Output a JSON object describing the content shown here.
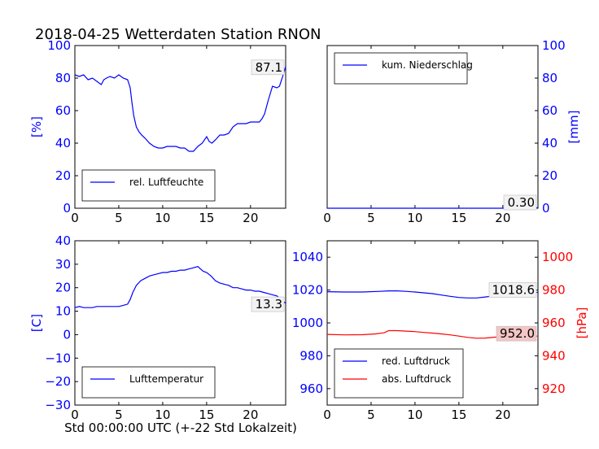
{
  "title": "2018-04-25 Wetterdaten Station RNON",
  "xlabel": "Std 00:00:00 UTC (+-22 Std Lokalzeit)",
  "colors": {
    "blue": "#0000ff",
    "red": "#ff0000",
    "annotation_bg_red": "#f4c6c6",
    "annotation_bg": "#f2f2f2"
  },
  "chart_data": [
    {
      "type": "line",
      "panel": "top-left",
      "ylabel": "[%]",
      "ylabel_side": "left",
      "xlim": [
        0,
        24
      ],
      "ylim": [
        0,
        100
      ],
      "xticks": [
        "0",
        "5",
        "10",
        "15",
        "20"
      ],
      "yticks": [
        "0",
        "20",
        "40",
        "60",
        "80",
        "100"
      ],
      "ytick_color": "blue",
      "legend_position": "lower-left",
      "annotation": "87.1",
      "series": [
        {
          "name": "rel. Luftfeuchte",
          "color": "blue",
          "x": [
            0,
            0.5,
            1,
            1.5,
            2,
            2.5,
            3,
            3.3,
            3.6,
            4,
            4.5,
            5,
            5.5,
            6,
            6.3,
            6.5,
            6.7,
            7,
            7.3,
            7.6,
            8,
            8.5,
            9,
            9.5,
            10,
            10.5,
            11,
            11.5,
            12,
            12.5,
            13,
            13.5,
            14,
            14.5,
            15,
            15.3,
            15.6,
            16,
            16.5,
            17,
            17.5,
            18,
            18.5,
            19,
            19.5,
            20,
            20.5,
            21,
            21.3,
            21.6,
            22,
            22.5,
            23,
            23.3,
            23.6,
            24
          ],
          "y": [
            82,
            81,
            82,
            79,
            80,
            78,
            76,
            79,
            80,
            81,
            80,
            82,
            80,
            79,
            74,
            65,
            57,
            50,
            47,
            45,
            43,
            40,
            38,
            37,
            37,
            38,
            38,
            38,
            37,
            37,
            35,
            35,
            38,
            40,
            44,
            41,
            40,
            42,
            45,
            45,
            46,
            50,
            52,
            52,
            52,
            53,
            53,
            53,
            55,
            58,
            66,
            75,
            74,
            75,
            80,
            87.1
          ]
        }
      ]
    },
    {
      "type": "line",
      "panel": "top-right",
      "ylabel": "[mm]",
      "ylabel_side": "right",
      "xlim": [
        0,
        24
      ],
      "ylim": [
        0,
        100
      ],
      "xticks": [
        "0",
        "5",
        "10",
        "15",
        "20"
      ],
      "yticks": [
        "0",
        "20",
        "40",
        "60",
        "80",
        "100"
      ],
      "ytick_color": "blue",
      "legend_position": "upper-left",
      "annotation": "0.30",
      "series": [
        {
          "name": "kum. Niederschlag",
          "color": "blue",
          "x": [
            0,
            20,
            24
          ],
          "y": [
            0,
            0,
            0.3
          ]
        }
      ]
    },
    {
      "type": "line",
      "panel": "bottom-left",
      "ylabel": "[C]",
      "ylabel_side": "left",
      "xlim": [
        0,
        24
      ],
      "ylim": [
        -30,
        40
      ],
      "xticks": [
        "0",
        "5",
        "10",
        "15",
        "20"
      ],
      "yticks": [
        "−30",
        "−20",
        "−10",
        "0",
        "10",
        "20",
        "30",
        "40"
      ],
      "ytick_color": "blue",
      "legend_position": "lower-left",
      "annotation": "13.3",
      "series": [
        {
          "name": "Lufttemperatur",
          "color": "blue",
          "x": [
            0,
            0.5,
            1,
            1.5,
            2,
            2.5,
            3,
            3.5,
            4,
            4.5,
            5,
            5.5,
            6,
            6.3,
            6.6,
            7,
            7.5,
            8,
            8.5,
            9,
            9.5,
            10,
            10.5,
            11,
            11.5,
            12,
            12.5,
            13,
            13.5,
            14,
            14.3,
            14.6,
            15,
            15.5,
            16,
            16.5,
            17,
            17.5,
            18,
            18.5,
            19,
            19.5,
            20,
            20.5,
            21,
            21.5,
            22,
            22.5,
            23,
            23.5,
            24
          ],
          "y": [
            11.5,
            12,
            11.5,
            11.5,
            11.5,
            12,
            12,
            12,
            12,
            12,
            12,
            12.5,
            13,
            15,
            18,
            21,
            23,
            24,
            25,
            25.5,
            26,
            26.5,
            26.5,
            27,
            27,
            27.5,
            27.5,
            28,
            28.5,
            29,
            28,
            27,
            26.5,
            25,
            23,
            22,
            21.5,
            21,
            20,
            20,
            19.5,
            19,
            19,
            18.5,
            18.5,
            18,
            17.5,
            17,
            16.5,
            15,
            13.3
          ]
        }
      ]
    },
    {
      "type": "line",
      "panel": "bottom-right",
      "xlim": [
        0,
        24
      ],
      "ylim_left": [
        950,
        1050
      ],
      "ylim_right": [
        910,
        1010
      ],
      "ylabel_right": "[hPa]",
      "xticks": [
        "0",
        "5",
        "10",
        "15",
        "20"
      ],
      "yticks_left": [
        "960",
        "980",
        "1000",
        "1020",
        "1040"
      ],
      "yticks_right": [
        "920",
        "940",
        "960",
        "980",
        "1000"
      ],
      "legend_position": "lower-left",
      "annotations": [
        "1018.6",
        "952.0"
      ],
      "series": [
        {
          "name": "red. Luftdruck",
          "color": "blue",
          "axis": "left",
          "x": [
            0,
            2,
            4,
            6,
            7,
            8,
            9,
            10,
            11,
            12,
            13,
            14,
            15,
            16,
            17,
            18,
            19,
            20,
            21,
            22,
            23,
            24
          ],
          "y": [
            1019,
            1018.8,
            1018.8,
            1019.2,
            1019.5,
            1019.5,
            1019.2,
            1018.8,
            1018.3,
            1017.8,
            1017,
            1016.2,
            1015.5,
            1015.2,
            1015.2,
            1015.8,
            1016.5,
            1017.2,
            1017.8,
            1018.2,
            1018.5,
            1018.6
          ]
        },
        {
          "name": "abs. Luftdruck",
          "color": "red",
          "axis": "right",
          "x": [
            0,
            2,
            4,
            5.5,
            6.5,
            7,
            8,
            9,
            10,
            11,
            12,
            13,
            14,
            15,
            16,
            17,
            18,
            19,
            20,
            21,
            22,
            23,
            24
          ],
          "y": [
            953,
            952.7,
            952.8,
            953.3,
            954,
            955.3,
            955.3,
            955,
            954.7,
            954.2,
            953.8,
            953.3,
            952.7,
            952,
            951.2,
            950.7,
            950.8,
            951.3,
            951.7,
            951.8,
            951.8,
            951.9,
            952.0
          ]
        }
      ]
    }
  ]
}
